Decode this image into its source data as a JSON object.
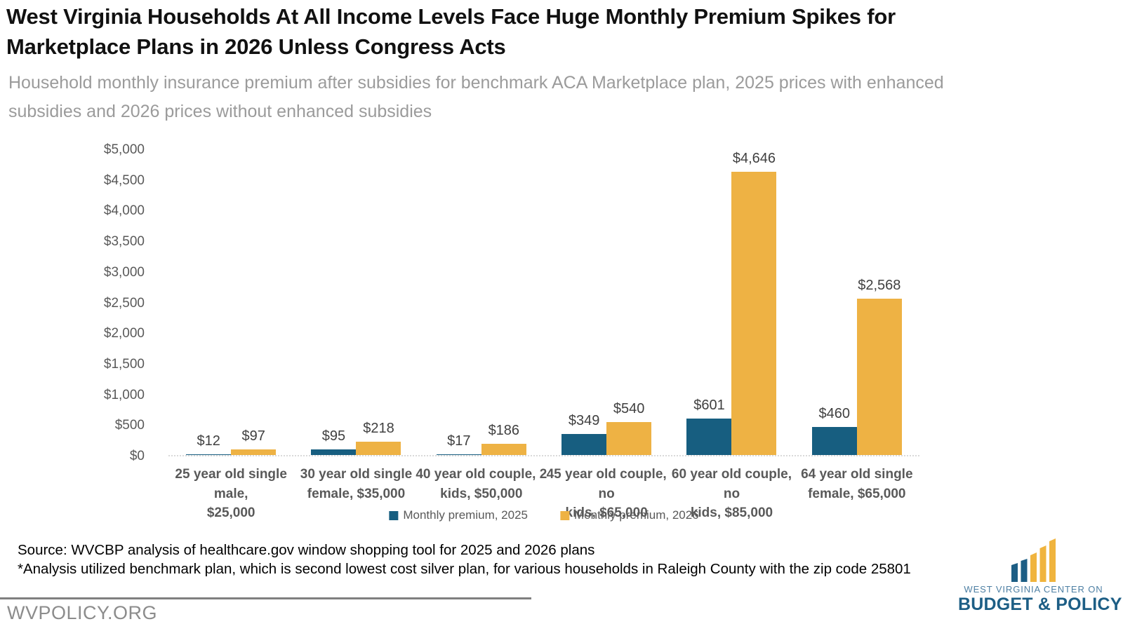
{
  "header": {
    "title": "West Virginia Households At All Income Levels Face Huge Monthly Premium Spikes for Marketplace Plans in 2026 Unless Congress Acts",
    "subtitle": "Household monthly insurance premium after subsidies for benchmark ACA Marketplace plan, 2025 prices with enhanced subsidies and 2026 prices without enhanced subsidies"
  },
  "chart_data": {
    "type": "bar",
    "categories": [
      "25 year old single male,\n$25,000",
      "30 year old single\nfemale, $35,000",
      "40 year old couple, 2\nkids, $50,000",
      "45 year old couple, no\nkids, $65,000",
      "60 year old couple, no\nkids, $85,000",
      "64 year old single\nfemale, $65,000"
    ],
    "series": [
      {
        "name": "Monthly premium, 2025",
        "color": "#175e80",
        "values": [
          12,
          95,
          17,
          349,
          601,
          460
        ],
        "labels": [
          "$12",
          "$95",
          "$17",
          "$349",
          "$601",
          "$460"
        ]
      },
      {
        "name": "Monthly premium, 2026",
        "color": "#eeb244",
        "values": [
          97,
          218,
          186,
          540,
          4646,
          2568
        ],
        "labels": [
          "$97",
          "$218",
          "$186",
          "$540",
          "$4,646",
          "$2,568"
        ]
      }
    ],
    "ylim": [
      0,
      5000
    ],
    "ytick_step": 500,
    "yticks": [
      "$0",
      "$500",
      "$1,000",
      "$1,500",
      "$2,000",
      "$2,500",
      "$3,000",
      "$3,500",
      "$4,000",
      "$4,500",
      "$5,000"
    ],
    "grid": false,
    "legend_position": "bottom"
  },
  "footer": {
    "source_line1": "Source: WVCBP analysis of healthcare.gov window shopping tool for 2025 and 2026 plans",
    "source_line2": "*Analysis utilized benchmark plan, which is second lowest cost silver plan, for various households in Raleigh County with the zip code 25801",
    "website": "WVPOLICY.ORG",
    "logo": {
      "line1": "WEST VIRGINIA CENTER ON",
      "line2": "BUDGET & POLICY"
    }
  },
  "colors": {
    "premium_2025": "#175e80",
    "premium_2026": "#eeb244",
    "logo_dark_blue": "#1d5e85",
    "logo_light_blue": "#4d7fa3",
    "logo_gold": "#f0b43e",
    "footer_gray": "#7f7f7f"
  }
}
